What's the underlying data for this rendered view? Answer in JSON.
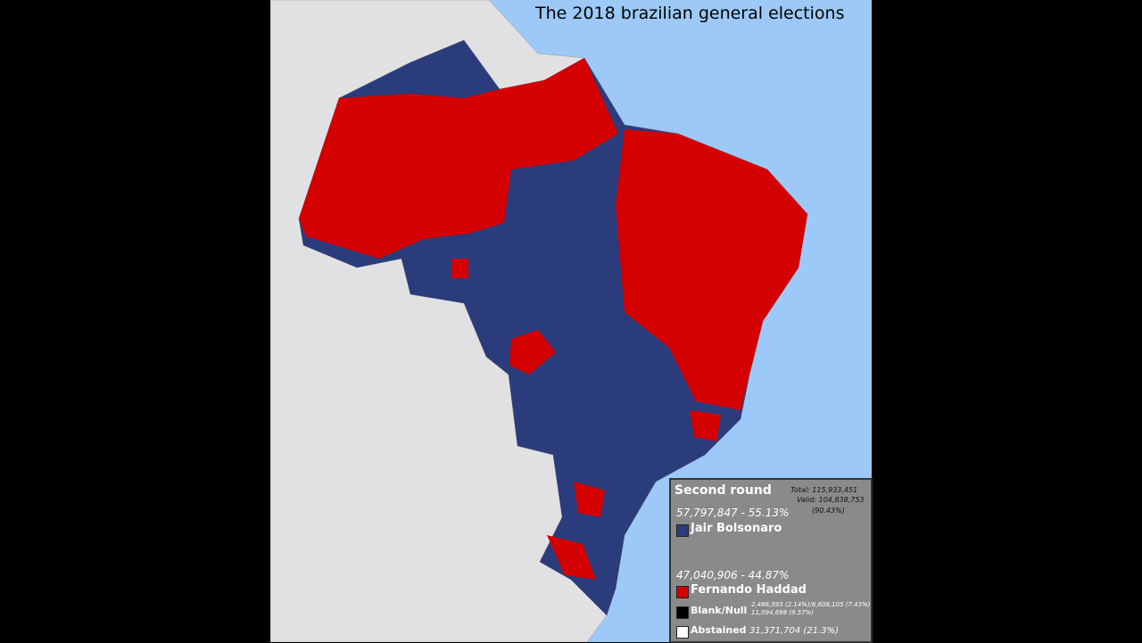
{
  "title": "The 2018 brazilian general elections",
  "legend": {
    "heading": "Second round",
    "totals": [
      "Total: 115,933,451",
      "Valid: 104,838,753",
      "(90.43%)"
    ],
    "candidates": [
      {
        "votes": "57,797,847 - 55.13%",
        "name": "Jair Bolsonaro",
        "color": "#2a3c7c"
      },
      {
        "votes": "47,040,906 - 44.87%",
        "name": "Fernando Haddad",
        "color": "#d40000"
      }
    ],
    "blank": {
      "label": "Blank/Null",
      "detail": [
        "2,486,593 (2.14%)/8,608,105 (7.43%)",
        "11,094,698 (9.57%)"
      ],
      "color": "#000000"
    },
    "abstained": {
      "label": "Abstained",
      "detail": "31,371,704 (21.3%)",
      "color": "#ffffff"
    }
  }
}
